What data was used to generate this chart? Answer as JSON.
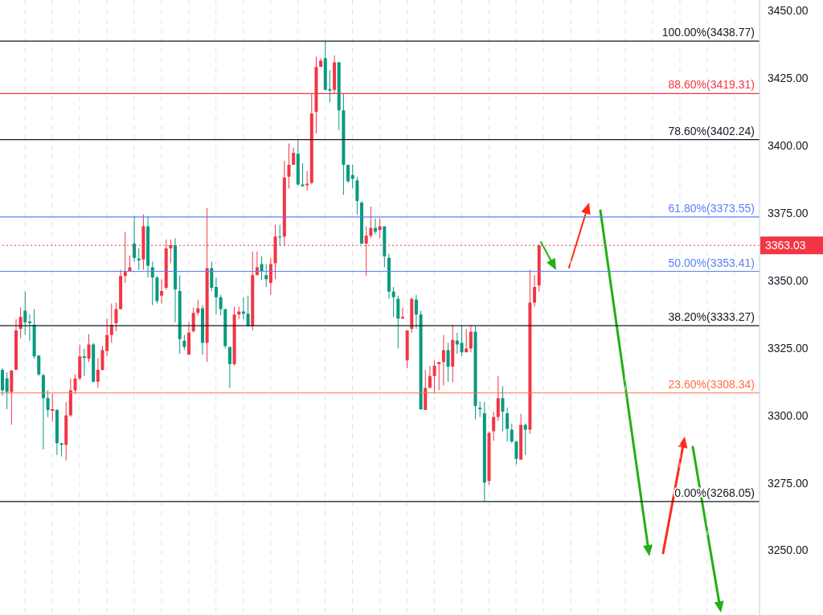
{
  "chart_data": {
    "type": "candlestick",
    "categories": [
      null,
      null,
      null,
      null,
      null,
      null,
      null,
      null,
      null,
      null,
      null,
      null,
      null,
      null,
      null,
      null,
      null,
      null,
      null,
      null,
      null,
      null,
      null,
      null,
      null,
      null,
      null,
      null,
      null,
      null,
      null,
      null,
      null,
      null,
      null,
      null,
      null,
      null,
      null,
      null,
      null,
      null,
      null,
      null,
      null,
      null,
      null,
      null,
      null,
      null,
      null,
      null,
      null,
      null,
      null,
      null,
      null,
      null,
      null,
      null,
      null,
      null,
      null,
      null,
      null,
      null,
      null,
      null,
      null,
      null,
      null,
      null,
      null,
      null,
      null,
      null,
      null,
      null,
      null,
      null,
      null,
      null,
      null,
      null,
      null,
      null,
      null,
      null,
      null,
      null,
      null,
      null,
      null,
      null,
      null,
      null,
      null,
      null,
      null,
      null,
      null,
      null,
      null,
      null,
      null,
      null,
      null,
      null,
      null,
      null,
      null,
      null,
      null,
      null,
      null,
      null,
      null,
      null,
      null,
      null,
      null,
      null,
      null,
      null,
      null,
      null,
      null,
      null,
      null,
      null,
      null,
      null,
      null,
      null,
      null,
      null,
      null,
      null,
      null,
      null,
      null,
      null,
      null,
      null,
      null,
      null,
      null,
      null,
      null,
      null,
      null,
      null,
      null,
      null,
      null,
      null,
      null,
      null,
      null,
      null,
      null,
      null,
      null,
      null,
      null,
      null,
      null
    ],
    "ohlc": [
      [
        3316.9,
        3317.5,
        3307.3,
        3309.3
      ],
      [
        3313.7,
        3316.0,
        3302.3,
        3308.7
      ],
      [
        3308.7,
        3316.9,
        3296.5,
        3316.6
      ],
      [
        3316.9,
        3335.6,
        3316.9,
        3331.5
      ],
      [
        3332.1,
        3340.0,
        3328.6,
        3336.5
      ],
      [
        3338.8,
        3345.9,
        3329.8,
        3334.5
      ],
      [
        3334.8,
        3337.4,
        3327.7,
        3334.2
      ],
      [
        3333.6,
        3339.4,
        3321.0,
        3321.9
      ],
      [
        3322.2,
        3322.2,
        3314.6,
        3315.2
      ],
      [
        3314.9,
        3315.5,
        3287.4,
        3306.4
      ],
      [
        3306.4,
        3309.3,
        3299.4,
        3302.0
      ],
      [
        3301.7,
        3308.1,
        3297.6,
        3302.3
      ],
      [
        3302.0,
        3302.3,
        3285.3,
        3289.7
      ],
      [
        3289.7,
        3289.7,
        3284.8,
        3289.1
      ],
      [
        3289.1,
        3304.9,
        3283.3,
        3300.0
      ],
      [
        3300.0,
        3313.7,
        3299.4,
        3309.3
      ],
      [
        3309.3,
        3315.2,
        3307.9,
        3313.7
      ],
      [
        3313.7,
        3326.3,
        3313.1,
        3321.9
      ],
      [
        3321.9,
        3324.8,
        3314.6,
        3321.3
      ],
      [
        3321.0,
        3330.1,
        3319.8,
        3326.3
      ],
      [
        3326.3,
        3326.9,
        3312.2,
        3312.5
      ],
      [
        3312.5,
        3321.3,
        3310.2,
        3316.9
      ],
      [
        3316.9,
        3325.7,
        3316.6,
        3324.2
      ],
      [
        3323.9,
        3335.9,
        3321.9,
        3329.8
      ],
      [
        3329.8,
        3341.5,
        3326.9,
        3333.6
      ],
      [
        3334.2,
        3341.8,
        3331.2,
        3339.4
      ],
      [
        3339.4,
        3354.0,
        3339.4,
        3351.7
      ],
      [
        3351.7,
        3368.1,
        3349.1,
        3353.2
      ],
      [
        3353.5,
        3359.3,
        3353.5,
        3354.9
      ],
      [
        3363.7,
        3373.9,
        3357.0,
        3358.4
      ],
      [
        3358.1,
        3361.9,
        3354.0,
        3357.5
      ],
      [
        3357.8,
        3374.5,
        3354.0,
        3370.1
      ],
      [
        3370.1,
        3373.9,
        3351.1,
        3355.5
      ],
      [
        3354.9,
        3357.0,
        3340.9,
        3351.1
      ],
      [
        3351.1,
        3351.7,
        3341.5,
        3342.4
      ],
      [
        3344.4,
        3350.5,
        3341.5,
        3346.1
      ],
      [
        3347.3,
        3365.2,
        3346.7,
        3361.9
      ],
      [
        3361.9,
        3365.2,
        3356.4,
        3363.1
      ],
      [
        3363.1,
        3365.7,
        3334.5,
        3346.7
      ],
      [
        3346.1,
        3352.0,
        3322.8,
        3328.3
      ],
      [
        3327.7,
        3329.8,
        3324.2,
        3325.4
      ],
      [
        3322.5,
        3334.5,
        3322.5,
        3330.7
      ],
      [
        3331.2,
        3340.0,
        3330.7,
        3338.0
      ],
      [
        3338.0,
        3342.9,
        3337.1,
        3339.7
      ],
      [
        3339.7,
        3340.9,
        3322.5,
        3326.9
      ],
      [
        3326.9,
        3376.8,
        3319.8,
        3354.6
      ],
      [
        3354.6,
        3357.0,
        3346.1,
        3347.3
      ],
      [
        3347.6,
        3351.1,
        3337.4,
        3343.8
      ],
      [
        3343.8,
        3344.7,
        3337.1,
        3339.4
      ],
      [
        3339.4,
        3339.4,
        3324.8,
        3325.7
      ],
      [
        3325.4,
        3325.4,
        3310.2,
        3319.0
      ],
      [
        3319.0,
        3340.3,
        3318.4,
        3337.4
      ],
      [
        3337.4,
        3340.3,
        3335.6,
        3338.5
      ],
      [
        3338.5,
        3343.8,
        3335.6,
        3337.7
      ],
      [
        3337.7,
        3344.4,
        3333.0,
        3333.0
      ],
      [
        3333.0,
        3360.8,
        3331.5,
        3352.0
      ],
      [
        3352.0,
        3360.8,
        3352.0,
        3354.9
      ],
      [
        3356.1,
        3359.0,
        3350.2,
        3353.5
      ],
      [
        3352.0,
        3356.1,
        3347.6,
        3350.5
      ],
      [
        3349.1,
        3358.4,
        3344.7,
        3356.1
      ],
      [
        3356.4,
        3370.7,
        3350.5,
        3366.3
      ],
      [
        3366.3,
        3370.7,
        3362.8,
        3366.0
      ],
      [
        3366.3,
        3394.4,
        3362.8,
        3388.2
      ],
      [
        3388.5,
        3400.8,
        3384.1,
        3392.9
      ],
      [
        3392.9,
        3399.3,
        3392.9,
        3397.3
      ],
      [
        3397.0,
        3402.3,
        3385.3,
        3385.6
      ],
      [
        3385.6,
        3393.5,
        3384.7,
        3385.0
      ],
      [
        3385.3,
        3390.6,
        3383.3,
        3385.9
      ],
      [
        3386.2,
        3419.2,
        3385.6,
        3411.9
      ],
      [
        3412.5,
        3433.0,
        3404.6,
        3429.2
      ],
      [
        3429.2,
        3432.4,
        3429.2,
        3431.5
      ],
      [
        3432.4,
        3438.77,
        3420.4,
        3420.7
      ],
      [
        3421.0,
        3428.0,
        3416.0,
        3420.4
      ],
      [
        3420.7,
        3433.5,
        3419.2,
        3430.9
      ],
      [
        3430.9,
        3430.9,
        3405.8,
        3413.1
      ],
      [
        3413.1,
        3419.2,
        3381.8,
        3392.9
      ],
      [
        3392.9,
        3392.9,
        3386.2,
        3386.8
      ],
      [
        3389.1,
        3392.9,
        3384.1,
        3387.7
      ],
      [
        3387.1,
        3388.5,
        3374.5,
        3379.5
      ],
      [
        3378.9,
        3379.5,
        3363.4,
        3363.7
      ],
      [
        3363.7,
        3370.1,
        3351.7,
        3366.6
      ],
      [
        3366.6,
        3377.4,
        3365.7,
        3369.5
      ],
      [
        3369.5,
        3373.0,
        3367.2,
        3368.1
      ],
      [
        3368.7,
        3373.0,
        3365.7,
        3370.1
      ],
      [
        3370.1,
        3370.1,
        3354.9,
        3359.0
      ],
      [
        3358.4,
        3359.9,
        3343.2,
        3345.9
      ],
      [
        3345.9,
        3347.6,
        3336.5,
        3343.8
      ],
      [
        3343.2,
        3344.4,
        3324.8,
        3335.9
      ],
      [
        3335.9,
        3340.0,
        3335.9,
        3336.5
      ],
      [
        3320.4,
        3331.5,
        3317.5,
        3331.5
      ],
      [
        3332.1,
        3343.8,
        3330.7,
        3343.2
      ],
      [
        3342.9,
        3344.7,
        3332.1,
        3337.4
      ],
      [
        3337.4,
        3338.8,
        3302.0,
        3302.3
      ],
      [
        3302.0,
        3316.9,
        3302.0,
        3310.2
      ],
      [
        3310.2,
        3318.4,
        3310.2,
        3314.6
      ],
      [
        3314.6,
        3320.4,
        3308.1,
        3318.4
      ],
      [
        3319.0,
        3319.8,
        3309.3,
        3319.8
      ],
      [
        3319.8,
        3329.8,
        3311.1,
        3324.2
      ],
      [
        3324.2,
        3326.9,
        3312.5,
        3318.1
      ],
      [
        3318.1,
        3333.6,
        3312.2,
        3328.0
      ],
      [
        3327.7,
        3330.7,
        3322.8,
        3326.3
      ],
      [
        3326.9,
        3333.6,
        3321.9,
        3323.4
      ],
      [
        3323.4,
        3332.1,
        3323.4,
        3324.8
      ],
      [
        3324.8,
        3333.6,
        3323.4,
        3331.0
      ],
      [
        3331.0,
        3333.0,
        3298.5,
        3303.5
      ],
      [
        3302.9,
        3305.2,
        3299.4,
        3302.3
      ],
      [
        3300.8,
        3304.9,
        3268.05,
        3275.1
      ],
      [
        3275.7,
        3294.1,
        3274.2,
        3293.5
      ],
      [
        3294.1,
        3301.4,
        3290.6,
        3299.4
      ],
      [
        3299.4,
        3314.6,
        3297.9,
        3306.4
      ],
      [
        3306.4,
        3310.8,
        3294.1,
        3301.4
      ],
      [
        3300.8,
        3302.9,
        3290.3,
        3295.0
      ],
      [
        3294.7,
        3297.0,
        3289.7,
        3290.3
      ],
      [
        3290.3,
        3290.6,
        3281.8,
        3283.9
      ],
      [
        3283.6,
        3300.6,
        3283.6,
        3296.5
      ],
      [
        3296.5,
        3297.0,
        3285.3,
        3294.7
      ],
      [
        3294.7,
        3354.0,
        3293.2,
        3341.8
      ],
      [
        3341.8,
        3352.0,
        3340.3,
        3347.6
      ],
      [
        3348.2,
        3363.4,
        3345.9,
        3363.03
      ],
      null,
      null,
      null,
      null,
      null,
      null,
      null,
      null,
      null,
      null,
      null,
      null,
      null,
      null,
      null,
      null,
      null,
      null,
      null,
      null,
      null,
      null,
      null,
      null,
      null,
      null,
      null,
      null,
      null,
      null,
      null,
      null,
      null,
      null,
      null,
      null,
      null,
      null,
      null,
      null,
      null,
      null,
      null,
      null,
      null,
      null,
      null,
      null
    ],
    "colors": [
      "#089981",
      "#089981",
      "#f23645",
      "#f23645",
      "#f23645",
      "#089981",
      "#089981",
      "#089981",
      "#089981",
      "#089981",
      "#089981",
      "#f23645",
      "#089981",
      "#089981",
      "#f23645",
      "#f23645",
      "#f23645",
      "#f23645",
      "#089981",
      "#f23645",
      "#089981",
      "#f23645",
      "#f23645",
      "#f23645",
      "#f23645",
      "#f23645",
      "#f23645",
      "#f23645",
      "#f23645",
      "#089981",
      "#089981",
      "#f23645",
      "#089981",
      "#089981",
      "#089981",
      "#f23645",
      "#f23645",
      "#f23645",
      "#089981",
      "#089981",
      "#089981",
      "#f23645",
      "#f23645",
      "#f23645",
      "#089981",
      "#f23645",
      "#089981",
      "#089981",
      "#089981",
      "#089981",
      "#089981",
      "#f23645",
      "#f23645",
      "#089981",
      "#089981",
      "#f23645",
      "#f23645",
      "#089981",
      "#089981",
      "#f23645",
      "#f23645",
      "#089981",
      "#f23645",
      "#f23645",
      "#f23645",
      "#089981",
      "#089981",
      "#f23645",
      "#f23645",
      "#f23645",
      "#f23645",
      "#089981",
      "#089981",
      "#f23645",
      "#089981",
      "#089981",
      "#089981",
      "#089981",
      "#089981",
      "#089981",
      "#f23645",
      "#f23645",
      "#089981",
      "#f23645",
      "#089981",
      "#089981",
      "#089981",
      "#089981",
      "#f23645",
      "#f23645",
      "#f23645",
      "#089981",
      "#089981",
      "#f23645",
      "#f23645",
      "#f23645",
      "#f23645",
      "#f23645",
      "#089981",
      "#f23645",
      "#089981",
      "#089981",
      "#f23645",
      "#f23645",
      "#089981",
      "#089981",
      "#089981",
      "#f23645",
      "#f23645",
      "#f23645",
      "#089981",
      "#089981",
      "#089981",
      "#089981",
      "#f23645",
      "#089981",
      "#f23645",
      "#f23645",
      "#f23645",
      null,
      null,
      null,
      null,
      null,
      null,
      null,
      null,
      null,
      null,
      null,
      null,
      null,
      null,
      null,
      null,
      null,
      null,
      null,
      null,
      null,
      null,
      null,
      null,
      null,
      null,
      null,
      null,
      null,
      null,
      null,
      null,
      null,
      null,
      null,
      null,
      null,
      null,
      null,
      null,
      null,
      null,
      null,
      null,
      null,
      null,
      null,
      null
    ],
    "ylim": [
      3226,
      3454
    ],
    "yticks": [
      {
        "value": 3250,
        "label": "3250.00"
      },
      {
        "value": 3275,
        "label": "3275.00"
      },
      {
        "value": 3300,
        "label": "3300.00"
      },
      {
        "value": 3325,
        "label": "3325.00"
      },
      {
        "value": 3350,
        "label": "3350.00"
      },
      {
        "value": 3375,
        "label": "3375.00"
      },
      {
        "value": 3400,
        "label": "3400.00"
      },
      {
        "value": 3425,
        "label": "3425.00"
      },
      {
        "value": 3450,
        "label": "3450.00"
      }
    ],
    "tick_labels": "y",
    "grid": "x",
    "ref_lines": [
      {
        "axis": "y",
        "value": 3438.77,
        "label": "100.00%(3438.77)",
        "color": "#131722"
      },
      {
        "axis": "y",
        "value": 3419.31,
        "label": "88.60%(3419.31)",
        "color": "#f23645"
      },
      {
        "axis": "y",
        "value": 3402.24,
        "label": "78.60%(3402.24)",
        "color": "#131722"
      },
      {
        "axis": "y",
        "value": 3373.55,
        "label": "61.80%(3373.55)",
        "color": "#5b7ff6"
      },
      {
        "axis": "y",
        "value": 3353.41,
        "label": "50.00%(3353.41)",
        "color": "#5b7ff6"
      },
      {
        "axis": "y",
        "value": 3333.27,
        "label": "38.20%(3333.27)",
        "color": "#131722"
      },
      {
        "axis": "y",
        "value": 3308.34,
        "label": "23.60%(3308.34)",
        "color": "#ff7043"
      },
      {
        "axis": "y",
        "value": 3268.05,
        "label": "0.00%(3268.05)",
        "color": "#131722"
      },
      {
        "axis": "y",
        "value": 3363.03,
        "label": "3363.03",
        "color": "#f23645",
        "line_style": "dotted"
      }
    ]
  }
}
